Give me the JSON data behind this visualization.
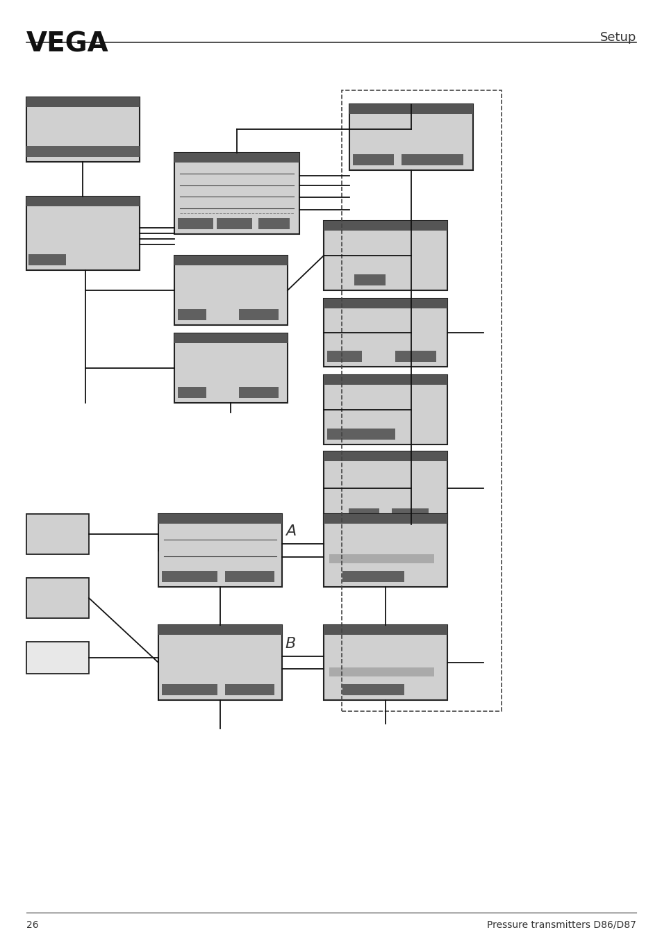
{
  "title": "Setup",
  "logo_text": "VEGA",
  "page_num": "26",
  "footer_text": "Pressure transmitters D86/D87",
  "bg_color": "#ffffff",
  "box_fill": "#d0d0d0",
  "box_fill_light": "#e8e8e8",
  "box_edge": "#222222",
  "dark_bar": "#606060",
  "darker_bar": "#555555",
  "line_color": "#111111",
  "label_A": "A",
  "label_B": "B"
}
